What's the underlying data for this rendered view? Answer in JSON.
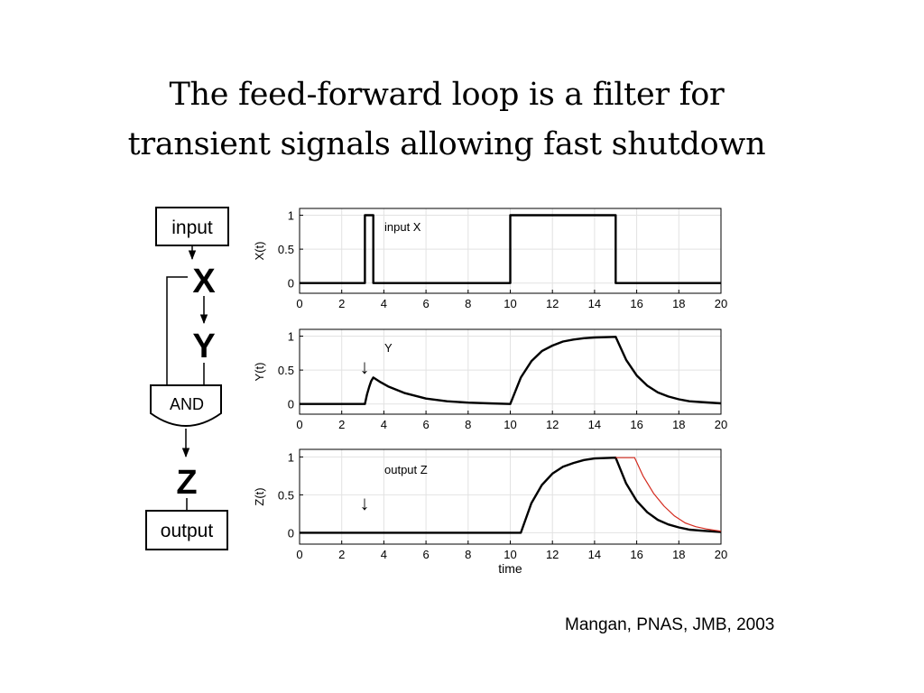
{
  "slide": {
    "title_line1": "The feed-forward loop is a filter for",
    "title_line2": "transient signals allowing fast shutdown",
    "citation": "Mangan, PNAS, JMB, 2003"
  },
  "circuit": {
    "input_label": "input",
    "x_label": "X",
    "y_label": "Y",
    "gate_label": "AND",
    "z_label": "Z",
    "output_label": "output"
  },
  "chart_data": [
    {
      "type": "line",
      "ylabel": "X(t)",
      "series_label": "input X",
      "x_ticks": [
        0,
        2,
        4,
        6,
        8,
        10,
        12,
        14,
        16,
        18,
        20
      ],
      "y_ticks": [
        0,
        0.5,
        1
      ],
      "xlim": [
        0,
        20
      ],
      "ylim": [
        -0.15,
        1.1
      ],
      "grid": true,
      "series": [
        {
          "color": "#000000",
          "points": [
            [
              0,
              0
            ],
            [
              3.1,
              0
            ],
            [
              3.1,
              1
            ],
            [
              3.5,
              1
            ],
            [
              3.5,
              0
            ],
            [
              10,
              0
            ],
            [
              10,
              1
            ],
            [
              15,
              1
            ],
            [
              15,
              0
            ],
            [
              20,
              0
            ]
          ]
        }
      ]
    },
    {
      "type": "line",
      "ylabel": "Y(t)",
      "series_label": "Y",
      "annotation": "↓",
      "annotation_x": 3,
      "x_ticks": [
        0,
        2,
        4,
        6,
        8,
        10,
        12,
        14,
        16,
        18,
        20
      ],
      "y_ticks": [
        0,
        0.5,
        1
      ],
      "xlim": [
        0,
        20
      ],
      "ylim": [
        -0.15,
        1.1
      ],
      "grid": true,
      "series": [
        {
          "color": "#000000",
          "points": [
            [
              0,
              0
            ],
            [
              3.1,
              0
            ],
            [
              3.2,
              0.14
            ],
            [
              3.3,
              0.25
            ],
            [
              3.4,
              0.34
            ],
            [
              3.5,
              0.39
            ],
            [
              3.8,
              0.33
            ],
            [
              4.2,
              0.26
            ],
            [
              5,
              0.16
            ],
            [
              6,
              0.08
            ],
            [
              7,
              0.04
            ],
            [
              8,
              0.02
            ],
            [
              9,
              0.01
            ],
            [
              10,
              0
            ],
            [
              10.5,
              0.39
            ],
            [
              11,
              0.63
            ],
            [
              11.5,
              0.78
            ],
            [
              12,
              0.86
            ],
            [
              12.5,
              0.92
            ],
            [
              13,
              0.95
            ],
            [
              13.5,
              0.97
            ],
            [
              14,
              0.98
            ],
            [
              15,
              0.99
            ],
            [
              15.5,
              0.65
            ],
            [
              16,
              0.42
            ],
            [
              16.5,
              0.27
            ],
            [
              17,
              0.17
            ],
            [
              17.5,
              0.11
            ],
            [
              18,
              0.07
            ],
            [
              18.5,
              0.04
            ],
            [
              19,
              0.03
            ],
            [
              20,
              0.01
            ]
          ]
        }
      ]
    },
    {
      "type": "line",
      "ylabel": "Z(t)",
      "xlabel": "time",
      "series_label": "output Z",
      "annotation": "↓",
      "annotation_x": 3,
      "x_ticks": [
        0,
        2,
        4,
        6,
        8,
        10,
        12,
        14,
        16,
        18,
        20
      ],
      "y_ticks": [
        0,
        0.5,
        1
      ],
      "xlim": [
        0,
        20
      ],
      "ylim": [
        -0.15,
        1.1
      ],
      "grid": true,
      "series": [
        {
          "color": "#000000",
          "points": [
            [
              0,
              0
            ],
            [
              10.5,
              0
            ],
            [
              11,
              0.39
            ],
            [
              11.5,
              0.63
            ],
            [
              12,
              0.78
            ],
            [
              12.5,
              0.87
            ],
            [
              13,
              0.92
            ],
            [
              13.5,
              0.96
            ],
            [
              14,
              0.98
            ],
            [
              15,
              0.99
            ],
            [
              15.5,
              0.65
            ],
            [
              16,
              0.42
            ],
            [
              16.5,
              0.27
            ],
            [
              17,
              0.17
            ],
            [
              17.5,
              0.11
            ],
            [
              18,
              0.07
            ],
            [
              18.5,
              0.04
            ],
            [
              19,
              0.03
            ],
            [
              20,
              0.01
            ]
          ]
        },
        {
          "color": "#d42a1e",
          "points": [
            [
              15,
              0.99
            ],
            [
              15.9,
              0.99
            ],
            [
              16.3,
              0.75
            ],
            [
              16.8,
              0.52
            ],
            [
              17.3,
              0.35
            ],
            [
              17.8,
              0.22
            ],
            [
              18.3,
              0.13
            ],
            [
              18.8,
              0.08
            ],
            [
              19.3,
              0.05
            ],
            [
              20,
              0.02
            ]
          ]
        }
      ]
    }
  ]
}
